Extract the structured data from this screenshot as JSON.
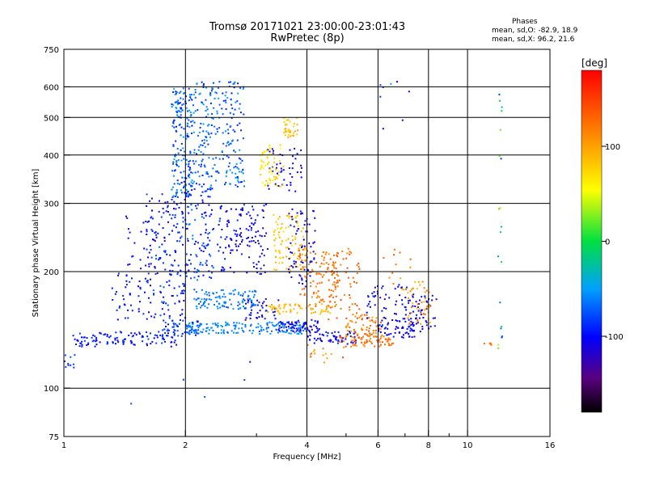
{
  "header": {
    "title": "Tromsø 20171021 23:00:00-23:01:43",
    "subtitle": "RwPretec (8p)"
  },
  "phases": {
    "heading": "Phases",
    "line_o": "mean, sd,O: -82.9, 18.9",
    "line_x": "mean, sd,X:  96.2, 21.6"
  },
  "colorbar": {
    "unit_label": "[deg]",
    "ticks": [
      "100",
      "0",
      "-100"
    ],
    "tick_values": [
      100,
      0,
      -100
    ],
    "range": [
      -180,
      180
    ]
  },
  "chart_data": {
    "type": "scatter",
    "xlabel": "Frequency [MHz]",
    "ylabel": "Stationary phase Virtual Height [km]",
    "x_scale": "log",
    "y_scale": "log",
    "xlim": [
      1,
      16
    ],
    "ylim": [
      75,
      750
    ],
    "x_ticks": [
      1,
      2,
      4,
      6,
      8,
      10,
      16
    ],
    "x_tick_labels": [
      "1",
      "2",
      "4",
      "6",
      "8",
      "10",
      "16"
    ],
    "x_minor_ticks": [
      3,
      5,
      7,
      9
    ],
    "y_ticks": [
      75,
      100,
      200,
      300,
      400,
      500,
      600,
      750
    ],
    "y_tick_labels": [
      "75",
      "100",
      "200",
      "300",
      "400",
      "500",
      "600",
      "750"
    ],
    "grid": true,
    "color_encoding": "phase [deg]",
    "clusters": [
      {
        "x0": 1.0,
        "x1": 1.07,
        "h0": 112,
        "h1": 122,
        "n": 10,
        "p0": -95,
        "p1": -80
      },
      {
        "x0": 1.05,
        "x1": 1.9,
        "h0": 128,
        "h1": 140,
        "n": 110,
        "p0": -120,
        "p1": -85
      },
      {
        "x0": 1.3,
        "x1": 1.6,
        "h0": 150,
        "h1": 200,
        "n": 40,
        "p0": -120,
        "p1": -90
      },
      {
        "x0": 1.4,
        "x1": 1.7,
        "h0": 200,
        "h1": 280,
        "n": 25,
        "p0": -125,
        "p1": -95
      },
      {
        "x0": 1.6,
        "x1": 2.0,
        "h0": 150,
        "h1": 320,
        "n": 170,
        "p0": -125,
        "p1": -80
      },
      {
        "x0": 1.85,
        "x1": 2.12,
        "h0": 310,
        "h1": 600,
        "n": 190,
        "p0": -110,
        "p1": -50
      },
      {
        "x0": 1.75,
        "x1": 2.15,
        "h0": 135,
        "h1": 150,
        "n": 60,
        "p0": -110,
        "p1": -80
      },
      {
        "x0": 2.0,
        "x1": 2.35,
        "h0": 190,
        "h1": 330,
        "n": 110,
        "p0": -115,
        "p1": -70
      },
      {
        "x0": 2.1,
        "x1": 2.8,
        "h0": 330,
        "h1": 620,
        "n": 220,
        "p0": -105,
        "p1": -55
      },
      {
        "x0": 2.4,
        "x1": 3.2,
        "h0": 195,
        "h1": 300,
        "n": 130,
        "p0": -130,
        "p1": -95
      },
      {
        "x0": 2.1,
        "x1": 3.0,
        "h0": 160,
        "h1": 180,
        "n": 110,
        "p0": -85,
        "p1": -55
      },
      {
        "x0": 2.0,
        "x1": 4.0,
        "h0": 138,
        "h1": 148,
        "n": 170,
        "p0": -85,
        "p1": -55
      },
      {
        "x0": 2.8,
        "x1": 3.4,
        "h0": 150,
        "h1": 170,
        "n": 40,
        "p0": -130,
        "p1": -95
      },
      {
        "x0": 3.2,
        "x1": 3.9,
        "h0": 320,
        "h1": 420,
        "n": 45,
        "p0": -130,
        "p1": -100
      },
      {
        "x0": 3.05,
        "x1": 3.5,
        "h0": 330,
        "h1": 430,
        "n": 60,
        "p0": 60,
        "p1": 95
      },
      {
        "x0": 3.5,
        "x1": 3.8,
        "h0": 440,
        "h1": 510,
        "n": 35,
        "p0": 80,
        "p1": 110
      },
      {
        "x0": 3.3,
        "x1": 4.0,
        "h0": 200,
        "h1": 280,
        "n": 90,
        "p0": 75,
        "p1": 110
      },
      {
        "x0": 3.6,
        "x1": 4.2,
        "h0": 180,
        "h1": 290,
        "n": 70,
        "p0": -135,
        "p1": -100
      },
      {
        "x0": 3.2,
        "x1": 4.6,
        "h0": 155,
        "h1": 165,
        "n": 60,
        "p0": 85,
        "p1": 115
      },
      {
        "x0": 3.8,
        "x1": 4.8,
        "h0": 160,
        "h1": 230,
        "n": 110,
        "p0": 115,
        "p1": 145
      },
      {
        "x0": 4.5,
        "x1": 5.4,
        "h0": 150,
        "h1": 230,
        "n": 60,
        "p0": 120,
        "p1": 150
      },
      {
        "x0": 3.4,
        "x1": 4.3,
        "h0": 140,
        "h1": 150,
        "n": 60,
        "p0": -130,
        "p1": -100
      },
      {
        "x0": 4.0,
        "x1": 5.3,
        "h0": 130,
        "h1": 140,
        "n": 60,
        "p0": -130,
        "p1": -95
      },
      {
        "x0": 5.0,
        "x1": 6.2,
        "h0": 135,
        "h1": 155,
        "n": 70,
        "p0": 110,
        "p1": 150
      },
      {
        "x0": 4.8,
        "x1": 6.6,
        "h0": 128,
        "h1": 136,
        "n": 60,
        "p0": 120,
        "p1": 150
      },
      {
        "x0": 5.6,
        "x1": 7.1,
        "h0": 150,
        "h1": 185,
        "n": 45,
        "p0": -130,
        "p1": -95
      },
      {
        "x0": 6.0,
        "x1": 7.4,
        "h0": 135,
        "h1": 150,
        "n": 60,
        "p0": -125,
        "p1": -95
      },
      {
        "x0": 7.0,
        "x1": 8.4,
        "h0": 140,
        "h1": 175,
        "n": 60,
        "p0": -130,
        "p1": -95
      },
      {
        "x0": 7.1,
        "x1": 8.1,
        "h0": 145,
        "h1": 190,
        "n": 45,
        "p0": 90,
        "p1": 135
      },
      {
        "x0": 6.2,
        "x1": 7.3,
        "h0": 170,
        "h1": 230,
        "n": 15,
        "p0": 100,
        "p1": 150
      },
      {
        "x0": 11.0,
        "x1": 11.5,
        "h0": 129,
        "h1": 131,
        "n": 6,
        "p0": 120,
        "p1": 150
      },
      {
        "x0": 11.9,
        "x1": 12.2,
        "h0": 110,
        "h1": 650,
        "n": 20,
        "p0": -100,
        "p1": 100
      },
      {
        "x0": 6.0,
        "x1": 7.2,
        "h0": 450,
        "h1": 620,
        "n": 8,
        "p0": -130,
        "p1": -50
      },
      {
        "x0": 4.0,
        "x1": 5.0,
        "h0": 115,
        "h1": 130,
        "n": 15,
        "p0": 100,
        "p1": 150
      },
      {
        "x0": 1.3,
        "x1": 3.2,
        "h0": 80,
        "h1": 130,
        "n": 5,
        "p0": -120,
        "p1": -80
      }
    ]
  }
}
